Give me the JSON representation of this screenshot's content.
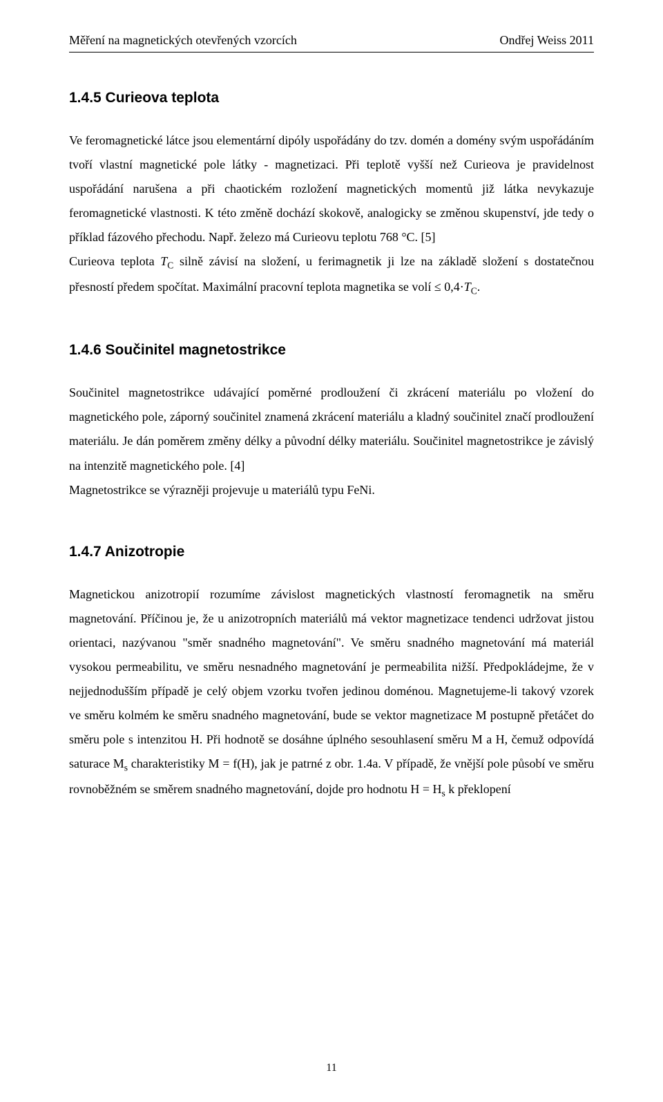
{
  "header": {
    "left": "Měření na magnetických otevřených vzorcích",
    "right": "Ondřej Weiss    2011"
  },
  "sections": [
    {
      "heading": "1.4.5  Curieova teplota",
      "paragraph_html": "Ve feromagnetické látce jsou elementární dipóly uspořádány do tzv. domén a domény svým uspořádáním tvoří vlastní magnetické pole látky - magnetizaci. Při teplotě vyšší než Curieova je pravidelnost uspořádání narušena a při chaotickém rozložení magnetických momentů již látka nevykazuje feromagnetické vlastnosti. K této změně dochází skokově, analogicky se změnou skupenství, jde tedy o příklad fázového přechodu. Např. železo má Curieovu teplotu 768 °C. [5]<br>Curieova teplota <i>T</i><span class=\"sub\">C</span> silně závisí na složení, u ferimagnetik ji lze na základě složení s dostatečnou přesností předem spočítat. Maximální pracovní teplota magnetika se volí ≤ 0,4·<i>T</i><span class=\"sub\">C</span>."
    },
    {
      "heading": "1.4.6  Součinitel magnetostrikce",
      "paragraph_html": "Součinitel magnetostrikce udávající poměrné prodloužení či zkrácení materiálu po vložení do magnetického pole, záporný součinitel znamená zkrácení materiálu a kladný součinitel značí prodloužení materiálu. Je dán poměrem změny délky a původní délky materiálu. Součinitel magnetostrikce je závislý na intenzitě magnetického pole. [4]<br>Magnetostrikce se výrazněji projevuje u materiálů typu  FeNi."
    },
    {
      "heading": "1.4.7  Anizotropie",
      "paragraph_html": "Magnetickou anizotropií rozumíme závislost magnetických vlastností feromagnetik na směru magnetování. Příčinou je, že u anizotropních materiálů má vektor magnetizace tendenci udržovat jistou orientaci, nazývanou \"směr snadného magnetování\". Ve směru snadného magnetování má materiál vysokou permeabilitu, ve směru nesnadného magnetování je permeabilita nižší. Předpokládejme, že v nejjednodušším případě je celý objem vzorku tvořen jedinou doménou. Magnetujeme-li takový vzorek ve směru kolmém ke směru snadného magnetování, bude se vektor magnetizace M postupně přetáčet do směru pole s intenzitou H. Při hodnotě se dosáhne úplného sesouhlasení směru M a H, čemuž odpovídá saturace M<span class=\"sub\">s</span> charakteristiky M = f(H), jak je patrné z obr. 1.4a. V případě, že vnější pole působí ve směru rovnoběžném se směrem snadného magnetování, dojde pro hodnotu H = H<span class=\"sub\">s</span> k překlopení"
    }
  ],
  "page_number": "11",
  "colors": {
    "text": "#000000",
    "background": "#ffffff",
    "rule": "#000000"
  },
  "typography": {
    "body_font": "Times New Roman",
    "heading_font": "Arial",
    "body_fontsize_pt": 14,
    "heading_fontsize_pt": 16,
    "line_height": 1.95
  }
}
